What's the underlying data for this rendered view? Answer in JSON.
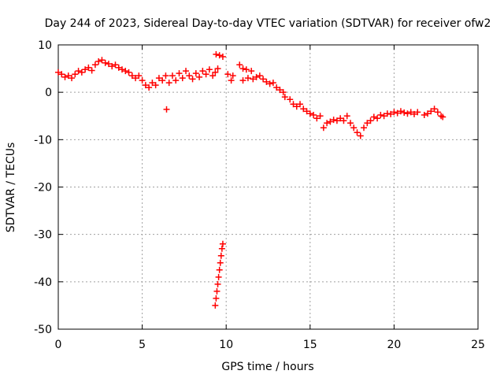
{
  "chart_data": {
    "type": "scatter",
    "title": "Day 244 of 2023, Sidereal Day-to-day VTEC variation (SDTVAR) for receiver ofw2",
    "xlabel": "GPS time / hours",
    "ylabel": "SDTVAR / TECUs",
    "xlim": [
      0,
      25
    ],
    "ylim": [
      -50,
      10
    ],
    "xticks": [
      0,
      5,
      10,
      15,
      20,
      25
    ],
    "yticks": [
      -50,
      -40,
      -30,
      -20,
      -10,
      0,
      10
    ],
    "grid": true,
    "marker": "+",
    "colors": {
      "series": "#ff0000",
      "grid": "#a0a0a0",
      "axis": "#000000"
    },
    "series": [
      {
        "name": "SDTVAR",
        "points": [
          [
            0.0,
            4.2
          ],
          [
            0.2,
            3.8
          ],
          [
            0.4,
            3.2
          ],
          [
            0.6,
            3.5
          ],
          [
            0.8,
            3.0
          ],
          [
            1.0,
            3.8
          ],
          [
            1.2,
            4.5
          ],
          [
            1.4,
            4.2
          ],
          [
            1.6,
            4.8
          ],
          [
            1.8,
            5.2
          ],
          [
            2.0,
            4.6
          ],
          [
            2.2,
            5.8
          ],
          [
            2.4,
            6.5
          ],
          [
            2.6,
            6.8
          ],
          [
            2.8,
            6.2
          ],
          [
            3.0,
            6.0
          ],
          [
            3.2,
            5.5
          ],
          [
            3.4,
            5.8
          ],
          [
            3.6,
            5.2
          ],
          [
            3.8,
            4.8
          ],
          [
            4.0,
            4.5
          ],
          [
            4.2,
            4.2
          ],
          [
            4.4,
            3.5
          ],
          [
            4.6,
            3.0
          ],
          [
            4.8,
            3.5
          ],
          [
            5.0,
            2.5
          ],
          [
            5.2,
            1.5
          ],
          [
            5.4,
            1.0
          ],
          [
            5.6,
            2.0
          ],
          [
            5.8,
            1.5
          ],
          [
            6.0,
            3.0
          ],
          [
            6.2,
            2.5
          ],
          [
            6.4,
            3.5
          ],
          [
            6.45,
            -3.6
          ],
          [
            6.6,
            2.0
          ],
          [
            6.8,
            3.5
          ],
          [
            7.0,
            2.5
          ],
          [
            7.2,
            4.0
          ],
          [
            7.4,
            3.0
          ],
          [
            7.6,
            4.5
          ],
          [
            7.8,
            3.5
          ],
          [
            8.0,
            2.8
          ],
          [
            8.2,
            4.0
          ],
          [
            8.4,
            3.2
          ],
          [
            8.6,
            4.5
          ],
          [
            8.8,
            3.8
          ],
          [
            9.0,
            4.8
          ],
          [
            9.2,
            3.5
          ],
          [
            9.35,
            4.2
          ],
          [
            9.5,
            5.0
          ],
          [
            9.35,
            -45.0
          ],
          [
            9.4,
            -43.5
          ],
          [
            9.45,
            -42.0
          ],
          [
            9.5,
            -40.5
          ],
          [
            9.55,
            -39.0
          ],
          [
            9.6,
            -37.5
          ],
          [
            9.65,
            -36.0
          ],
          [
            9.7,
            -34.5
          ],
          [
            9.75,
            -33.0
          ],
          [
            9.8,
            -32.0
          ],
          [
            9.4,
            8.0
          ],
          [
            9.6,
            7.8
          ],
          [
            9.8,
            7.5
          ],
          [
            10.1,
            3.8
          ],
          [
            10.3,
            2.5
          ],
          [
            10.4,
            3.5
          ],
          [
            10.8,
            5.8
          ],
          [
            11.0,
            5.0
          ],
          [
            11.2,
            4.8
          ],
          [
            11.5,
            4.5
          ],
          [
            11.0,
            2.5
          ],
          [
            11.3,
            3.0
          ],
          [
            11.6,
            2.8
          ],
          [
            11.8,
            3.2
          ],
          [
            12.0,
            3.5
          ],
          [
            12.2,
            2.8
          ],
          [
            12.4,
            2.2
          ],
          [
            12.6,
            1.8
          ],
          [
            12.8,
            2.0
          ],
          [
            13.0,
            1.0
          ],
          [
            13.2,
            0.5
          ],
          [
            13.4,
            0.0
          ],
          [
            13.5,
            -1.0
          ],
          [
            13.8,
            -1.5
          ],
          [
            14.0,
            -2.5
          ],
          [
            14.2,
            -3.0
          ],
          [
            14.4,
            -2.5
          ],
          [
            14.6,
            -3.5
          ],
          [
            14.8,
            -4.0
          ],
          [
            15.0,
            -4.5
          ],
          [
            15.2,
            -4.8
          ],
          [
            15.4,
            -5.5
          ],
          [
            15.6,
            -5.0
          ],
          [
            15.8,
            -7.5
          ],
          [
            16.0,
            -6.5
          ],
          [
            16.2,
            -6.2
          ],
          [
            16.4,
            -5.8
          ],
          [
            16.6,
            -6.0
          ],
          [
            16.8,
            -5.5
          ],
          [
            17.0,
            -6.0
          ],
          [
            17.2,
            -5.0
          ],
          [
            17.4,
            -6.5
          ],
          [
            17.6,
            -7.5
          ],
          [
            17.8,
            -8.5
          ],
          [
            18.0,
            -9.2
          ],
          [
            18.2,
            -7.5
          ],
          [
            18.4,
            -6.5
          ],
          [
            18.6,
            -6.0
          ],
          [
            18.8,
            -5.2
          ],
          [
            19.0,
            -5.5
          ],
          [
            19.2,
            -4.8
          ],
          [
            19.4,
            -5.0
          ],
          [
            19.6,
            -4.5
          ],
          [
            19.8,
            -4.6
          ],
          [
            20.0,
            -4.2
          ],
          [
            20.2,
            -4.4
          ],
          [
            20.4,
            -4.0
          ],
          [
            20.6,
            -4.3
          ],
          [
            20.8,
            -4.5
          ],
          [
            21.0,
            -4.2
          ],
          [
            21.2,
            -4.6
          ],
          [
            21.4,
            -4.2
          ],
          [
            21.8,
            -4.8
          ],
          [
            22.0,
            -4.5
          ],
          [
            22.2,
            -4.0
          ],
          [
            22.4,
            -3.5
          ],
          [
            22.6,
            -4.2
          ],
          [
            22.8,
            -5.0
          ],
          [
            22.9,
            -5.2
          ]
        ]
      }
    ]
  }
}
